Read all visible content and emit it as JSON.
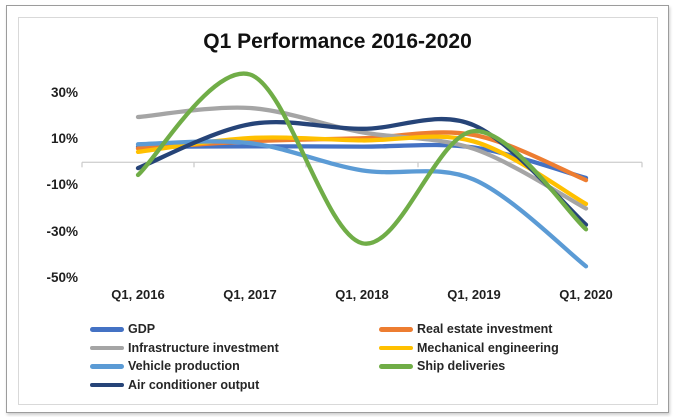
{
  "frame": {
    "outer_border_color": "#9c9c9c",
    "inner_border_color": "#d9d9d9",
    "background": "#ffffff"
  },
  "chart_data": {
    "type": "line",
    "smooth": true,
    "title": "Q1 Performance 2016-2020",
    "categories": [
      "Q1, 2016",
      "Q1, 2017",
      "Q1, 2018",
      "Q1, 2019",
      "Q1, 2020"
    ],
    "series": [
      {
        "name": "GDP",
        "color": "#4472C4",
        "values": [
          6.7,
          6.9,
          6.8,
          6.4,
          -6.8
        ]
      },
      {
        "name": "Real estate investment",
        "color": "#ED7D31",
        "values": [
          6.0,
          9.1,
          10.4,
          11.8,
          -7.7
        ]
      },
      {
        "name": "Infrastructure investment",
        "color": "#A5A5A5",
        "values": [
          19.6,
          23.5,
          13.0,
          5.8,
          -20.0
        ]
      },
      {
        "name": "Mechanical engineering",
        "color": "#FFC000",
        "values": [
          4.5,
          10.5,
          9.5,
          9.0,
          -18.0
        ]
      },
      {
        "name": "Vehicle production",
        "color": "#5B9BD5",
        "values": [
          7.8,
          8.3,
          -3.5,
          -7.5,
          -45.0
        ]
      },
      {
        "name": "Ship deliveries",
        "color": "#70AD47",
        "values": [
          -5.5,
          38.0,
          -35.0,
          13.5,
          -29.0
        ]
      },
      {
        "name": "Air conditioner output",
        "color": "#264478",
        "values": [
          -2.5,
          16.5,
          14.5,
          16.0,
          -27.0
        ]
      }
    ],
    "yticks": [
      {
        "value": 30,
        "label": "30%"
      },
      {
        "value": 10,
        "label": "10%"
      },
      {
        "value": -10,
        "label": "-10%"
      },
      {
        "value": -30,
        "label": "-30%"
      },
      {
        "value": -50,
        "label": "-50%"
      }
    ],
    "ylim": [
      -50,
      40
    ],
    "grid": "zero-axis-only",
    "axis_color": "#d2d2d2",
    "tick_color": "#c9c9c9",
    "legend_position": "bottom-two-columns"
  }
}
